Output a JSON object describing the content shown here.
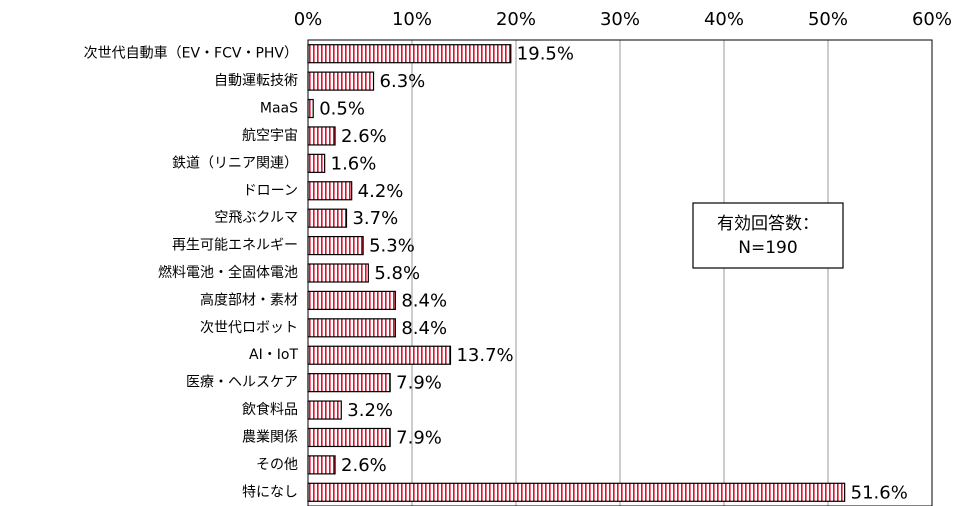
{
  "chart_data": {
    "type": "bar",
    "orientation": "horizontal",
    "categories": [
      "次世代自動車（EV・FCV・PHV）",
      "自動運転技術",
      "MaaS",
      "航空宇宙",
      "鉄道（リニア関連）",
      "ドローン",
      "空飛ぶクルマ",
      "再生可能エネルギー",
      "燃料電池・全固体電池",
      "高度部材・素材",
      "次世代ロボット",
      "AI・IoT",
      "医療・ヘルスケア",
      "飲食料品",
      "農業関係",
      "その他",
      "特になし"
    ],
    "values": [
      19.5,
      6.3,
      0.5,
      2.6,
      1.6,
      4.2,
      3.7,
      5.3,
      5.8,
      8.4,
      8.4,
      13.7,
      7.9,
      3.2,
      7.9,
      2.6,
      51.6
    ],
    "value_labels": [
      "19.5%",
      "6.3%",
      "0.5%",
      "2.6%",
      "1.6%",
      "4.2%",
      "3.7%",
      "5.3%",
      "5.8%",
      "8.4%",
      "8.4%",
      "13.7%",
      "7.9%",
      "3.2%",
      "7.9%",
      "2.6%",
      "51.6%"
    ],
    "color": "#e0102a",
    "xlim": [
      0,
      60
    ],
    "xticks": [
      {
        "value": 0,
        "label": "0%"
      },
      {
        "value": 10,
        "label": "10%"
      },
      {
        "value": 20,
        "label": "20%"
      },
      {
        "value": 30,
        "label": "30%"
      },
      {
        "value": 40,
        "label": "40%"
      },
      {
        "value": 50,
        "label": "50%"
      },
      {
        "value": 60,
        "label": "60%"
      }
    ],
    "grid": true,
    "annotation": [
      "有効回答数：",
      "N=190"
    ]
  }
}
